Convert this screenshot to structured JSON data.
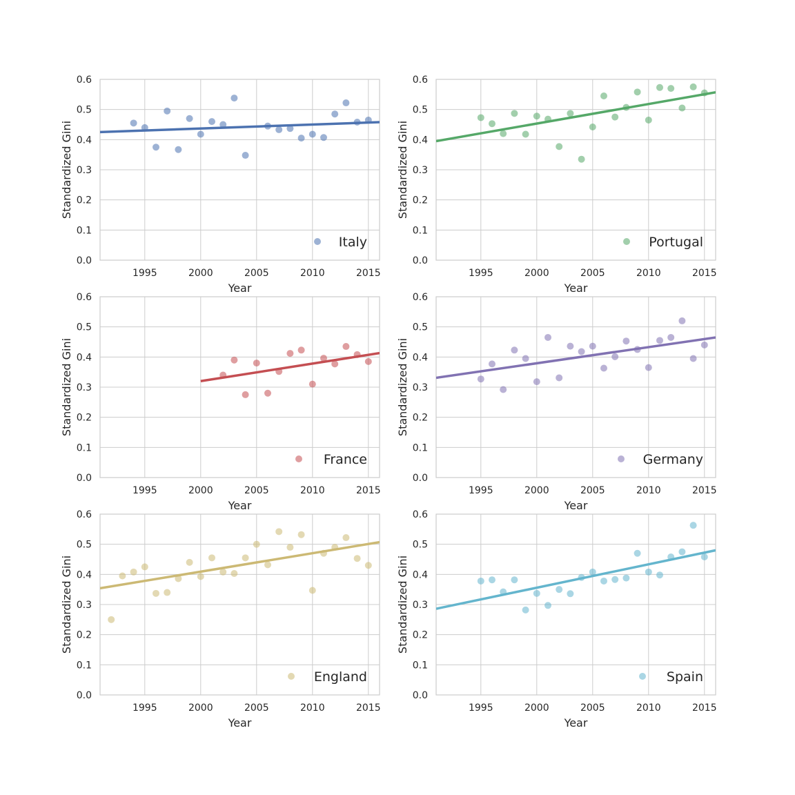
{
  "chart_data": [
    {
      "type": "scatter",
      "name": "Italy",
      "color": "#4c72b0",
      "xlabel": "Year",
      "ylabel": "Standardized Gini",
      "xlim": [
        1991,
        2016
      ],
      "ylim": [
        0,
        0.6
      ],
      "xticks": [
        1995,
        2000,
        2005,
        2010,
        2015
      ],
      "yticks": [
        "0.0",
        "0.1",
        "0.2",
        "0.3",
        "0.4",
        "0.5",
        "0.6"
      ],
      "legend": "lower-right",
      "x": [
        1994,
        1995,
        1996,
        1997,
        1998,
        1999,
        2000,
        2001,
        2002,
        2003,
        2004,
        2006,
        2007,
        2008,
        2009,
        2010,
        2011,
        2012,
        2013,
        2014,
        2015
      ],
      "y": [
        0.455,
        0.44,
        0.375,
        0.495,
        0.367,
        0.47,
        0.418,
        0.46,
        0.45,
        0.538,
        0.348,
        0.445,
        0.433,
        0.437,
        0.405,
        0.418,
        0.407,
        0.485,
        0.522,
        0.458,
        0.465
      ],
      "trend": [
        [
          1991,
          0.425
        ],
        [
          2016,
          0.458
        ]
      ]
    },
    {
      "type": "scatter",
      "name": "Portugal",
      "color": "#55a868",
      "xlabel": "Year",
      "ylabel": "Standardized Gini",
      "xlim": [
        1991,
        2016
      ],
      "ylim": [
        0,
        0.6
      ],
      "xticks": [
        1995,
        2000,
        2005,
        2010,
        2015
      ],
      "yticks": [
        "0.0",
        "0.1",
        "0.2",
        "0.3",
        "0.4",
        "0.5",
        "0.6"
      ],
      "legend": "lower-right",
      "x": [
        1995,
        1996,
        1997,
        1998,
        1999,
        2000,
        2001,
        2002,
        2003,
        2004,
        2005,
        2006,
        2007,
        2008,
        2009,
        2010,
        2011,
        2012,
        2013,
        2014,
        2015
      ],
      "y": [
        0.473,
        0.453,
        0.42,
        0.487,
        0.418,
        0.478,
        0.468,
        0.377,
        0.487,
        0.335,
        0.442,
        0.545,
        0.475,
        0.507,
        0.558,
        0.465,
        0.573,
        0.57,
        0.505,
        0.575,
        0.555
      ],
      "trend": [
        [
          1991,
          0.395
        ],
        [
          2016,
          0.557
        ]
      ]
    },
    {
      "type": "scatter",
      "name": "France",
      "color": "#c44e52",
      "xlabel": "Year",
      "ylabel": "Standardized Gini",
      "xlim": [
        1991,
        2016
      ],
      "ylim": [
        0,
        0.6
      ],
      "xticks": [
        1995,
        2000,
        2005,
        2010,
        2015
      ],
      "yticks": [
        "0.0",
        "0.1",
        "0.2",
        "0.3",
        "0.4",
        "0.5",
        "0.6"
      ],
      "legend": "lower-right",
      "x": [
        2002,
        2003,
        2004,
        2005,
        2006,
        2007,
        2008,
        2009,
        2010,
        2011,
        2012,
        2013,
        2014,
        2015
      ],
      "y": [
        0.34,
        0.39,
        0.275,
        0.38,
        0.28,
        0.352,
        0.412,
        0.423,
        0.31,
        0.396,
        0.377,
        0.435,
        0.408,
        0.385
      ],
      "trend": [
        [
          2000,
          0.32
        ],
        [
          2016,
          0.413
        ]
      ]
    },
    {
      "type": "scatter",
      "name": "Germany",
      "color": "#8172b2",
      "xlabel": "Year",
      "ylabel": "Standardized Gini",
      "xlim": [
        1991,
        2016
      ],
      "ylim": [
        0,
        0.6
      ],
      "xticks": [
        1995,
        2000,
        2005,
        2010,
        2015
      ],
      "yticks": [
        "0.0",
        "0.1",
        "0.2",
        "0.3",
        "0.4",
        "0.5",
        "0.6"
      ],
      "legend": "lower-right",
      "x": [
        1995,
        1996,
        1997,
        1998,
        1999,
        2000,
        2001,
        2002,
        2003,
        2004,
        2005,
        2006,
        2007,
        2008,
        2009,
        2010,
        2011,
        2012,
        2013,
        2014,
        2015
      ],
      "y": [
        0.327,
        0.377,
        0.292,
        0.423,
        0.395,
        0.318,
        0.465,
        0.331,
        0.436,
        0.418,
        0.436,
        0.363,
        0.401,
        0.453,
        0.425,
        0.365,
        0.455,
        0.465,
        0.52,
        0.395,
        0.44
      ],
      "trend": [
        [
          1991,
          0.331
        ],
        [
          2016,
          0.465
        ]
      ]
    },
    {
      "type": "scatter",
      "name": "England",
      "color": "#ccb974",
      "xlabel": "Year",
      "ylabel": "Standardized Gini",
      "xlim": [
        1991,
        2016
      ],
      "ylim": [
        0,
        0.6
      ],
      "xticks": [
        1995,
        2000,
        2005,
        2010,
        2015
      ],
      "yticks": [
        "0.0",
        "0.1",
        "0.2",
        "0.3",
        "0.4",
        "0.5",
        "0.6"
      ],
      "legend": "lower-right",
      "x": [
        1992,
        1993,
        1994,
        1995,
        1996,
        1997,
        1998,
        1999,
        2000,
        2001,
        2002,
        2003,
        2004,
        2005,
        2006,
        2007,
        2008,
        2009,
        2010,
        2011,
        2012,
        2013,
        2014,
        2015
      ],
      "y": [
        0.25,
        0.395,
        0.408,
        0.425,
        0.337,
        0.34,
        0.386,
        0.44,
        0.393,
        0.455,
        0.408,
        0.403,
        0.455,
        0.5,
        0.432,
        0.542,
        0.49,
        0.532,
        0.347,
        0.47,
        0.49,
        0.522,
        0.453,
        0.43
      ],
      "trend": [
        [
          1991,
          0.354
        ],
        [
          2016,
          0.507
        ]
      ]
    },
    {
      "type": "scatter",
      "name": "Spain",
      "color": "#64b5cd",
      "xlabel": "Year",
      "ylabel": "Standardized Gini",
      "xlim": [
        1991,
        2016
      ],
      "ylim": [
        0,
        0.6
      ],
      "xticks": [
        1995,
        2000,
        2005,
        2010,
        2015
      ],
      "yticks": [
        "0.0",
        "0.1",
        "0.2",
        "0.3",
        "0.4",
        "0.5",
        "0.6"
      ],
      "legend": "lower-right",
      "x": [
        1995,
        1996,
        1997,
        1998,
        1999,
        2000,
        2001,
        2002,
        2003,
        2004,
        2005,
        2006,
        2007,
        2008,
        2009,
        2010,
        2011,
        2012,
        2013,
        2014,
        2015
      ],
      "y": [
        0.378,
        0.382,
        0.342,
        0.382,
        0.282,
        0.337,
        0.297,
        0.35,
        0.336,
        0.39,
        0.408,
        0.378,
        0.383,
        0.388,
        0.47,
        0.408,
        0.398,
        0.458,
        0.475,
        0.563,
        0.458
      ],
      "trend": [
        [
          1991,
          0.286
        ],
        [
          2016,
          0.48
        ]
      ]
    }
  ]
}
